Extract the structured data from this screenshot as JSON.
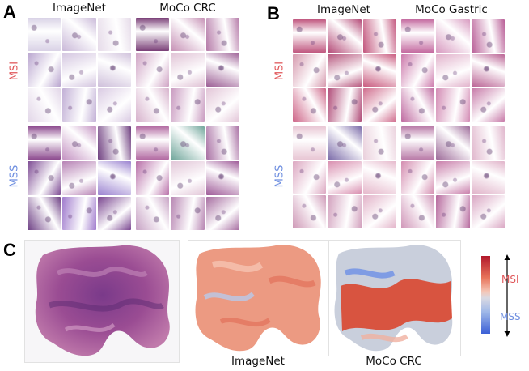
{
  "panels": {
    "A": {
      "letter": "A",
      "left_title": "ImageNet",
      "right_title": "MoCo CRC",
      "msi_label": "MSI",
      "mss_label": "MSS"
    },
    "B": {
      "letter": "B",
      "left_title": "ImageNet",
      "right_title": "MoCo Gastric",
      "msi_label": "MSI",
      "mss_label": "MSS"
    },
    "C": {
      "letter": "C",
      "caption_imagenet": "ImageNet",
      "caption_moco": "MoCo CRC",
      "colorbar_top_label": "MSI",
      "colorbar_bottom_label": "MSS"
    }
  },
  "colors": {
    "msi_label": "#e0575a",
    "mss_label": "#6f8fe0",
    "colorbar_high": "#b2182b",
    "colorbar_low": "#3b5fd6"
  }
}
